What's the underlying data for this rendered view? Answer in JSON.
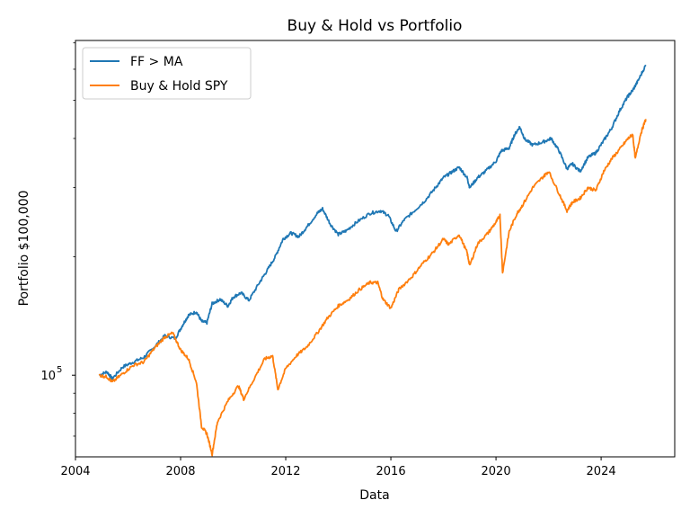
{
  "chart_data": {
    "type": "line",
    "title": "Buy & Hold vs Portfolio",
    "xlabel": "Data",
    "ylabel": "Portfolio $100,000",
    "yscale": "log",
    "xlim": [
      2004.0,
      2026.8
    ],
    "ylim": [
      62000,
      710000
    ],
    "xticks": [
      2004,
      2008,
      2012,
      2016,
      2020,
      2024
    ],
    "xtick_labels": [
      "2004",
      "2008",
      "2012",
      "2016",
      "2020",
      "2024"
    ],
    "ytick_main": {
      "value": 100000,
      "base": "10",
      "exp": "5"
    },
    "ytick_minor": [
      70000,
      80000,
      90000,
      200000,
      300000,
      400000,
      500000,
      600000,
      700000
    ],
    "legend_position": "upper-left",
    "series": [
      {
        "name": "FF > MA",
        "color": "#1f77b4",
        "points": [
          [
            2004.9,
            100000
          ],
          [
            2005.2,
            102000
          ],
          [
            2005.4,
            98000
          ],
          [
            2005.8,
            105000
          ],
          [
            2006.2,
            108000
          ],
          [
            2006.6,
            111000
          ],
          [
            2007.0,
            118000
          ],
          [
            2007.4,
            126000
          ],
          [
            2007.8,
            124000
          ],
          [
            2008.1,
            135000
          ],
          [
            2008.3,
            142000
          ],
          [
            2008.6,
            145000
          ],
          [
            2008.8,
            137000
          ],
          [
            2009.0,
            136000
          ],
          [
            2009.2,
            152000
          ],
          [
            2009.5,
            156000
          ],
          [
            2009.8,
            150000
          ],
          [
            2010.0,
            158000
          ],
          [
            2010.3,
            162000
          ],
          [
            2010.6,
            155000
          ],
          [
            2011.0,
            172000
          ],
          [
            2011.3,
            185000
          ],
          [
            2011.6,
            200000
          ],
          [
            2011.9,
            222000
          ],
          [
            2012.2,
            230000
          ],
          [
            2012.5,
            225000
          ],
          [
            2012.8,
            238000
          ],
          [
            2013.2,
            258000
          ],
          [
            2013.4,
            265000
          ],
          [
            2013.7,
            242000
          ],
          [
            2014.0,
            228000
          ],
          [
            2014.3,
            233000
          ],
          [
            2014.7,
            245000
          ],
          [
            2015.2,
            258000
          ],
          [
            2015.6,
            262000
          ],
          [
            2015.9,
            255000
          ],
          [
            2016.2,
            232000
          ],
          [
            2016.5,
            248000
          ],
          [
            2016.9,
            262000
          ],
          [
            2017.3,
            278000
          ],
          [
            2017.7,
            300000
          ],
          [
            2018.0,
            318000
          ],
          [
            2018.3,
            328000
          ],
          [
            2018.6,
            338000
          ],
          [
            2018.9,
            318000
          ],
          [
            2019.0,
            300000
          ],
          [
            2019.3,
            318000
          ],
          [
            2019.6,
            330000
          ],
          [
            2020.0,
            350000
          ],
          [
            2020.2,
            372000
          ],
          [
            2020.5,
            378000
          ],
          [
            2020.7,
            408000
          ],
          [
            2020.9,
            428000
          ],
          [
            2021.1,
            398000
          ],
          [
            2021.4,
            385000
          ],
          [
            2021.8,
            392000
          ],
          [
            2022.1,
            400000
          ],
          [
            2022.4,
            372000
          ],
          [
            2022.7,
            335000
          ],
          [
            2022.9,
            345000
          ],
          [
            2023.2,
            330000
          ],
          [
            2023.5,
            358000
          ],
          [
            2023.8,
            368000
          ],
          [
            2024.1,
            395000
          ],
          [
            2024.4,
            425000
          ],
          [
            2024.7,
            470000
          ],
          [
            2025.0,
            510000
          ],
          [
            2025.2,
            530000
          ],
          [
            2025.4,
            560000
          ],
          [
            2025.7,
            615000
          ]
        ]
      },
      {
        "name": "Buy & Hold SPY",
        "color": "#ff7f0e",
        "points": [
          [
            2004.9,
            100000
          ],
          [
            2005.2,
            99000
          ],
          [
            2005.4,
            96000
          ],
          [
            2005.8,
            101000
          ],
          [
            2006.2,
            106000
          ],
          [
            2006.6,
            108000
          ],
          [
            2007.0,
            117000
          ],
          [
            2007.4,
            125000
          ],
          [
            2007.7,
            128000
          ],
          [
            2008.0,
            116000
          ],
          [
            2008.3,
            110000
          ],
          [
            2008.6,
            96000
          ],
          [
            2008.8,
            74000
          ],
          [
            2009.0,
            71000
          ],
          [
            2009.2,
            63000
          ],
          [
            2009.4,
            76000
          ],
          [
            2009.8,
            86000
          ],
          [
            2010.2,
            94000
          ],
          [
            2010.4,
            87000
          ],
          [
            2010.8,
            98000
          ],
          [
            2011.2,
            110000
          ],
          [
            2011.5,
            112000
          ],
          [
            2011.7,
            92000
          ],
          [
            2012.0,
            104000
          ],
          [
            2012.4,
            112000
          ],
          [
            2012.8,
            118000
          ],
          [
            2013.2,
            128000
          ],
          [
            2013.6,
            140000
          ],
          [
            2014.0,
            150000
          ],
          [
            2014.4,
            156000
          ],
          [
            2014.8,
            165000
          ],
          [
            2015.2,
            172000
          ],
          [
            2015.5,
            172000
          ],
          [
            2015.7,
            156000
          ],
          [
            2016.0,
            148000
          ],
          [
            2016.3,
            165000
          ],
          [
            2016.8,
            178000
          ],
          [
            2017.2,
            192000
          ],
          [
            2017.6,
            205000
          ],
          [
            2018.0,
            222000
          ],
          [
            2018.2,
            215000
          ],
          [
            2018.6,
            228000
          ],
          [
            2018.9,
            205000
          ],
          [
            2019.0,
            190000
          ],
          [
            2019.3,
            216000
          ],
          [
            2019.7,
            230000
          ],
          [
            2020.0,
            245000
          ],
          [
            2020.15,
            255000
          ],
          [
            2020.25,
            182000
          ],
          [
            2020.5,
            232000
          ],
          [
            2020.8,
            258000
          ],
          [
            2021.0,
            270000
          ],
          [
            2021.4,
            300000
          ],
          [
            2021.8,
            320000
          ],
          [
            2022.0,
            330000
          ],
          [
            2022.4,
            290000
          ],
          [
            2022.7,
            262000
          ],
          [
            2022.9,
            275000
          ],
          [
            2023.2,
            282000
          ],
          [
            2023.5,
            300000
          ],
          [
            2023.8,
            295000
          ],
          [
            2024.1,
            330000
          ],
          [
            2024.4,
            355000
          ],
          [
            2024.7,
            375000
          ],
          [
            2025.0,
            398000
          ],
          [
            2025.2,
            410000
          ],
          [
            2025.3,
            355000
          ],
          [
            2025.5,
            410000
          ],
          [
            2025.7,
            448000
          ]
        ]
      }
    ]
  }
}
